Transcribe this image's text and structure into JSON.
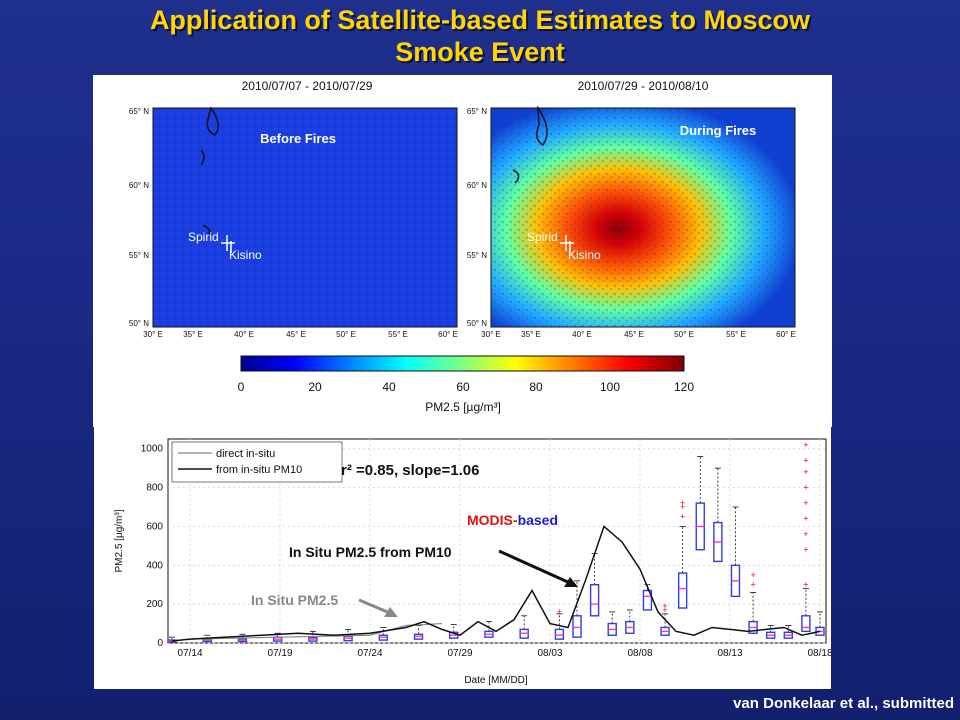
{
  "title_line1": "Application of Satellite-based Estimates to Moscow",
  "title_line2": "Smoke Event",
  "maps": {
    "left": {
      "date_range": "2010/07/07 - 2010/07/29",
      "label": "Before Fires"
    },
    "right": {
      "date_range": "2010/07/29 - 2010/08/10",
      "label": "During Fires"
    },
    "lat_ticks": [
      "65° N",
      "60° N",
      "55° N",
      "50° N"
    ],
    "lon_ticks": [
      "30° E",
      "35° E",
      "40° E",
      "45° E",
      "50° E",
      "55° E",
      "60° E"
    ],
    "sites": [
      "Spirid",
      "Kisino"
    ]
  },
  "colorbar": {
    "ticks": [
      "0",
      "20",
      "40",
      "60",
      "80",
      "100",
      "120"
    ],
    "label": "PM2.5 [µg/m³]"
  },
  "timeseries": {
    "ylabel": "PM2.5 [µg/m³]",
    "xlabel": "Date [MM/DD]",
    "yticks": [
      "0",
      "200",
      "400",
      "600",
      "800",
      "1000"
    ],
    "xticks": [
      "07/14",
      "07/19",
      "07/24",
      "07/29",
      "08/03",
      "08/08",
      "08/13",
      "08/18"
    ],
    "legend": [
      "direct in-situ",
      "from in-situ PM10"
    ],
    "stats": "r² =0.85, slope=1.06",
    "annot_modis_red": "MODIS-",
    "annot_modis_blue": "based",
    "annot_insitu_pm10": "In Situ PM2.5 from PM10",
    "annot_insitu": "In Situ PM2.5"
  },
  "credit": "van Donkelaar et al., submitted",
  "colors": {
    "title": "#ffd600",
    "background": "#1a2a86",
    "box": "#2f3fdc",
    "median": "#ff33cc",
    "outlier": "#e01010"
  },
  "chart_data": {
    "type": "box",
    "xlabel": "Date [MM/DD]",
    "ylabel": "PM2.5 [µg/m³]",
    "ylim": [
      0,
      1050
    ],
    "series": [
      {
        "name": "direct in-situ",
        "x": [
          "07/14",
          "07/19",
          "07/24",
          "07/26",
          "07/28"
        ],
        "values": [
          20,
          30,
          40,
          90,
          100
        ]
      },
      {
        "name": "from in-situ PM10",
        "x": [
          "07/13",
          "07/14",
          "07/16",
          "07/18",
          "07/20",
          "07/22",
          "07/24",
          "07/26",
          "07/27",
          "07/28",
          "07/29",
          "07/30",
          "07/31",
          "08/01",
          "08/02",
          "08/03",
          "08/04",
          "08/05",
          "08/06",
          "08/07",
          "08/08",
          "08/09",
          "08/10",
          "08/11",
          "08/12",
          "08/13",
          "08/14",
          "08/15",
          "08/16",
          "08/17",
          "08/18"
        ],
        "values": [
          10,
          20,
          30,
          40,
          50,
          40,
          50,
          80,
          110,
          70,
          40,
          110,
          60,
          120,
          270,
          100,
          80,
          330,
          600,
          520,
          380,
          160,
          60,
          40,
          80,
          70,
          60,
          70,
          80,
          40,
          60
        ]
      }
    ]
  }
}
